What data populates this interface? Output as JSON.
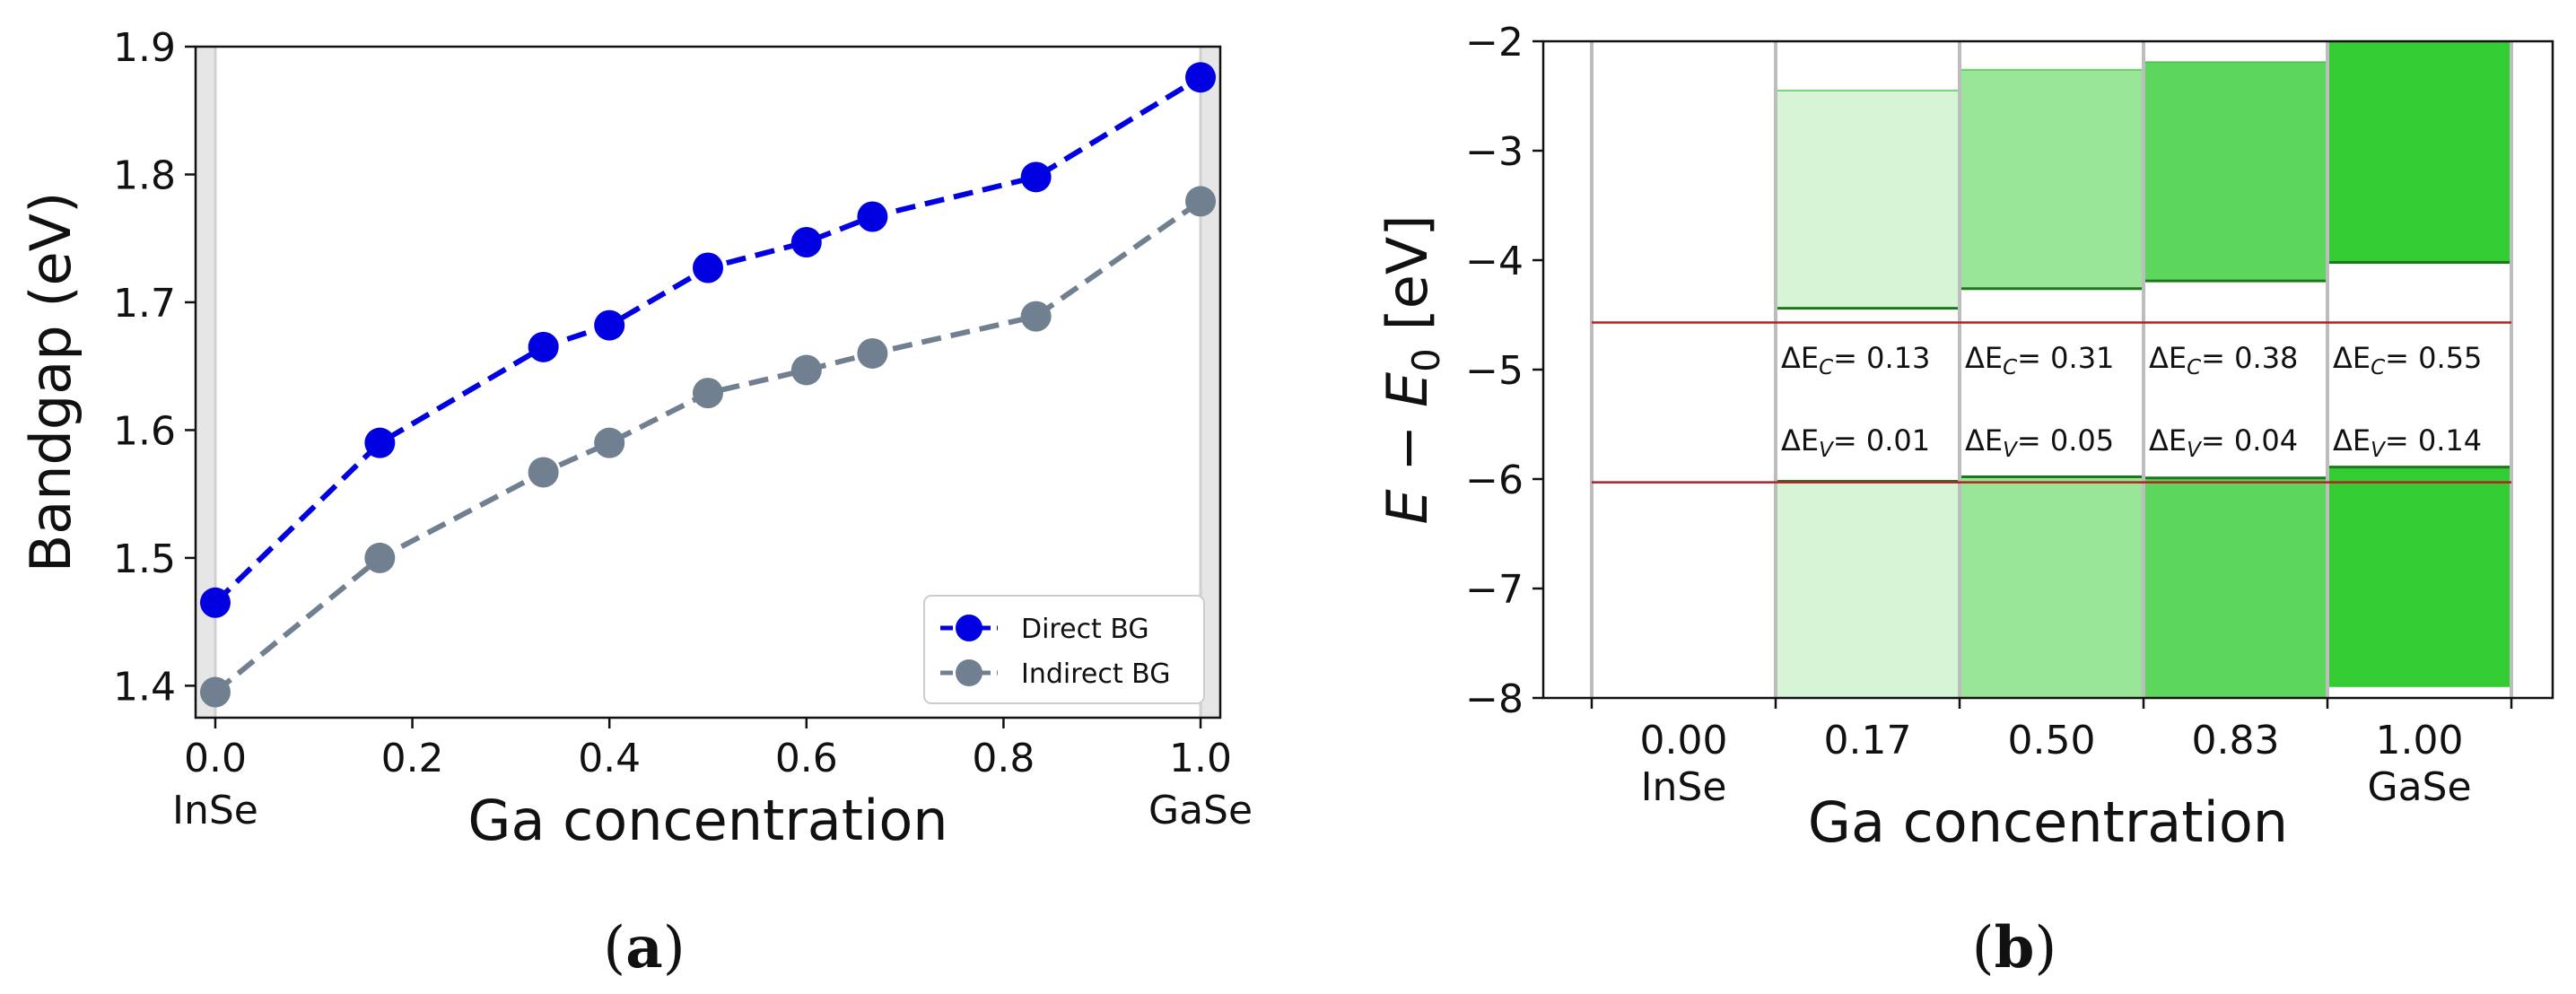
{
  "chart_data": [
    {
      "panel": "a",
      "type": "line",
      "caption": "(a)",
      "caption_letter": "a",
      "xlabel": "Ga concentration",
      "ylabel": "Bandgap (eV)",
      "xlim": [
        -0.02,
        1.02
      ],
      "ylim": [
        1.375,
        1.9
      ],
      "xticks": [
        0.0,
        0.2,
        0.4,
        0.6,
        0.8,
        1.0
      ],
      "xtick_labels": [
        "0.0",
        "0.2",
        "0.4",
        "0.6",
        "0.8",
        "1.0"
      ],
      "xtick_sublabels": [
        "InSe",
        "",
        "",
        "",
        "",
        "GaSe"
      ],
      "yticks": [
        1.4,
        1.5,
        1.6,
        1.7,
        1.8,
        1.9
      ],
      "ytick_labels": [
        "1.4",
        "1.5",
        "1.6",
        "1.7",
        "1.8",
        "1.9"
      ],
      "shaded_x": [
        [
          -0.02,
          0.0
        ],
        [
          1.0,
          1.02
        ]
      ],
      "legend_position": "lower-right",
      "x": [
        0.0,
        0.167,
        0.333,
        0.4,
        0.5,
        0.6,
        0.667,
        0.833,
        1.0
      ],
      "series": [
        {
          "name": "Direct BG",
          "color": "#0000e0",
          "values": [
            1.465,
            1.59,
            1.665,
            1.682,
            1.727,
            1.747,
            1.767,
            1.798,
            1.876
          ]
        },
        {
          "name": "Indirect BG",
          "color": "#708090",
          "values": [
            1.395,
            1.5,
            1.567,
            1.59,
            1.629,
            1.647,
            1.66,
            1.689,
            1.779
          ]
        }
      ]
    },
    {
      "panel": "b",
      "type": "bar",
      "caption": "(b)",
      "caption_letter": "b",
      "xlabel": "Ga concentration",
      "ylabel": "E − E",
      "ylabel_subscript": "0",
      "ylabel_unit": "[eV]",
      "ylim": [
        -8,
        -2
      ],
      "yticks": [
        -8,
        -7,
        -6,
        -5,
        -4,
        -3,
        -2
      ],
      "ytick_labels": [
        "−8",
        "−7",
        "−6",
        "−5",
        "−4",
        "−3",
        "−2"
      ],
      "categories": [
        "0.00",
        "0.17",
        "0.50",
        "0.83",
        "1.00"
      ],
      "category_sublabels": [
        "InSe",
        "",
        "",
        "",
        "GaSe"
      ],
      "reference_lines": [
        -4.57,
        -6.03
      ],
      "reference_line_color": "#b22222",
      "bars": [
        {
          "category": "0.00",
          "cb_min": null,
          "cb_max": null,
          "vb_max": null,
          "vb_min": null,
          "color": null
        },
        {
          "category": "0.17",
          "cb_min": -4.44,
          "cb_max": -2.45,
          "vb_max": -6.02,
          "vb_min": -8.0,
          "color": "#d6f5d6"
        },
        {
          "category": "0.50",
          "cb_min": -4.26,
          "cb_max": -2.26,
          "vb_max": -5.98,
          "vb_min": -8.0,
          "color": "#99e699"
        },
        {
          "category": "0.83",
          "cb_min": -4.19,
          "cb_max": -2.19,
          "vb_max": -5.99,
          "vb_min": -8.0,
          "color": "#5cd65c"
        },
        {
          "category": "1.00",
          "cb_min": -4.02,
          "cb_max": -2.0,
          "vb_max": -5.89,
          "vb_min": -7.9,
          "color": "#33cc33"
        }
      ],
      "annotations_ec": [
        {
          "prefix": "ΔE",
          "sub": "C",
          "text": "= 0.13"
        },
        {
          "prefix": "ΔE",
          "sub": "C",
          "text": "= 0.31"
        },
        {
          "prefix": "ΔE",
          "sub": "C",
          "text": "= 0.38"
        },
        {
          "prefix": "ΔE",
          "sub": "C",
          "text": "= 0.55"
        }
      ],
      "annotations_ev": [
        {
          "prefix": "ΔE",
          "sub": "V",
          "text": "= 0.01"
        },
        {
          "prefix": "ΔE",
          "sub": "V",
          "text": "= 0.05"
        },
        {
          "prefix": "ΔE",
          "sub": "V",
          "text": "= 0.04"
        },
        {
          "prefix": "ΔE",
          "sub": "V",
          "text": "= 0.14"
        }
      ]
    }
  ]
}
